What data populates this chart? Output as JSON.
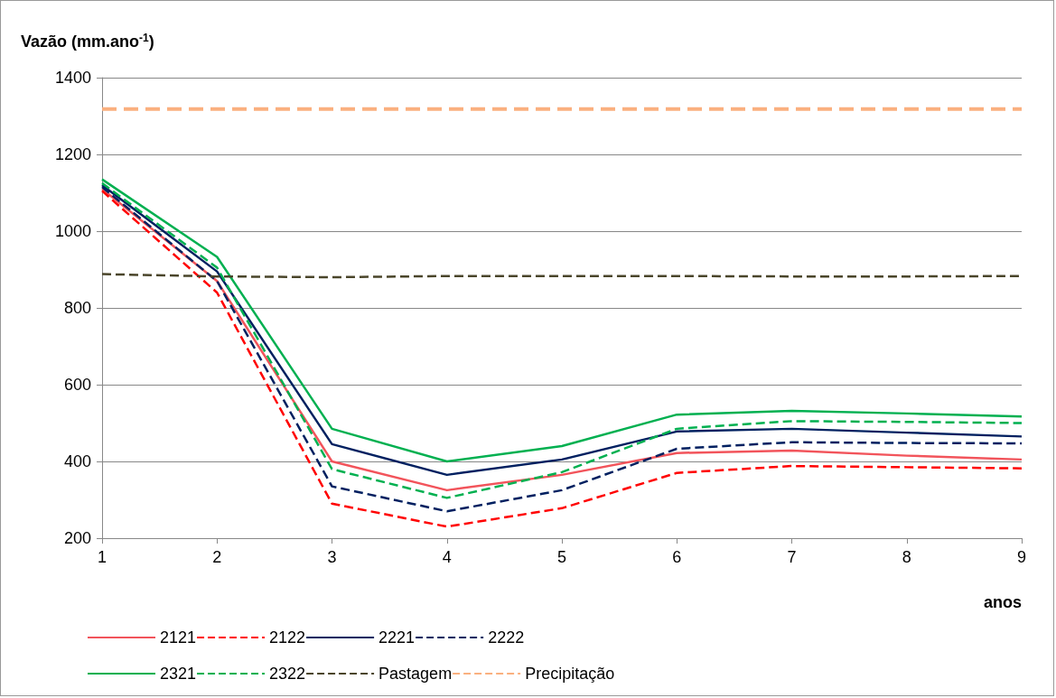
{
  "chart_data": {
    "type": "line",
    "ylabel": "Vazão (mm.ano$^{-1}$)",
    "xlabel": "anos",
    "x": [
      1,
      2,
      3,
      4,
      5,
      6,
      7,
      8,
      9
    ],
    "xlim": [
      1,
      9
    ],
    "xticks": [
      1,
      2,
      3,
      4,
      5,
      6,
      7,
      8,
      9
    ],
    "ylim": [
      200,
      1400
    ],
    "yticks": [
      200,
      400,
      600,
      800,
      1000,
      1200,
      1400
    ],
    "grid": "y",
    "legend": "bottom",
    "marker": "none",
    "series": [
      {
        "name": "2121",
        "color": "#f2545b",
        "line_style": "solid",
        "values": [
          1110,
          870,
          400,
          325,
          365,
          422,
          428,
          415,
          405
        ]
      },
      {
        "name": "2122",
        "color": "#ff0000",
        "line_style": "dashed",
        "values": [
          1105,
          840,
          290,
          230,
          278,
          370,
          388,
          385,
          382
        ]
      },
      {
        "name": "2221",
        "color": "#002060",
        "line_style": "solid",
        "values": [
          1120,
          895,
          445,
          365,
          405,
          478,
          485,
          475,
          465
        ]
      },
      {
        "name": "2222",
        "color": "#002060",
        "line_style": "dashed",
        "values": [
          1115,
          870,
          335,
          270,
          325,
          433,
          450,
          448,
          447
        ]
      },
      {
        "name": "2321",
        "color": "#00b050",
        "line_style": "solid",
        "values": [
          1135,
          933,
          485,
          400,
          440,
          522,
          532,
          525,
          517
        ]
      },
      {
        "name": "2322",
        "color": "#00b050",
        "line_style": "dashed",
        "values": [
          1125,
          905,
          380,
          305,
          372,
          485,
          505,
          503,
          500
        ]
      },
      {
        "name": "Pastagem",
        "color": "#4a452a",
        "line_style": "dashed",
        "values": [
          888,
          882,
          880,
          883,
          883,
          883,
          882,
          882,
          883
        ]
      },
      {
        "name": "Precipitação",
        "color": "#fab07f",
        "line_style": "dashed",
        "values": [
          1318,
          1318,
          1318,
          1318,
          1318,
          1318,
          1318,
          1318,
          1318
        ]
      }
    ]
  }
}
